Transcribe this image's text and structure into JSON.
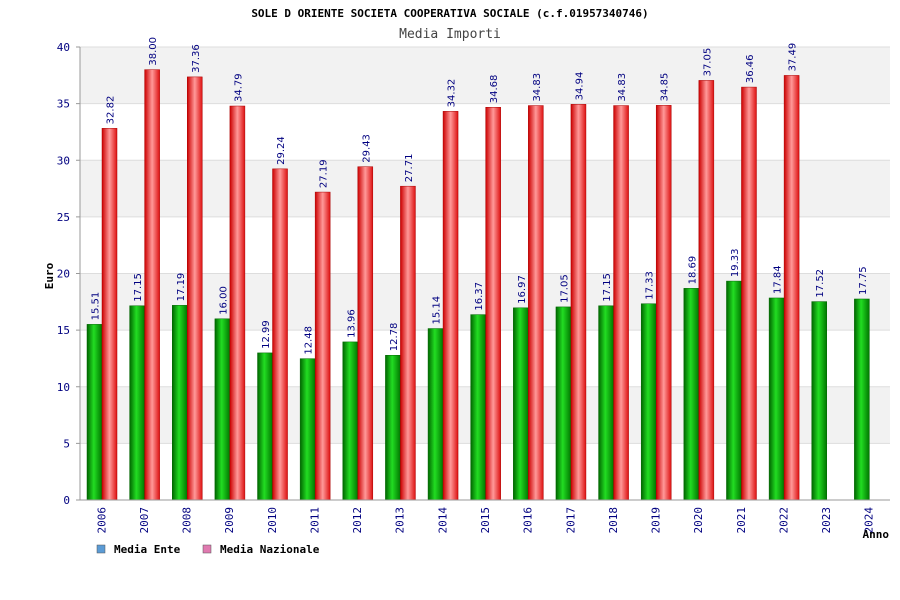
{
  "chart_data": {
    "type": "bar",
    "title": "SOLE D ORIENTE SOCIETA COOPERATIVA SOCIALE (c.f.01957340746)",
    "subtitle": "Media Importi",
    "xlabel": "Anno",
    "ylabel": "Euro",
    "ylim": [
      0,
      40
    ],
    "yticks": [
      0,
      5,
      10,
      15,
      20,
      25,
      30,
      35,
      40
    ],
    "grid": true,
    "legend_position": "bottom-left",
    "categories": [
      "2006",
      "2007",
      "2008",
      "2009",
      "2010",
      "2011",
      "2012",
      "2013",
      "2014",
      "2015",
      "2016",
      "2017",
      "2018",
      "2019",
      "2020",
      "2021",
      "2022",
      "2023",
      "2024"
    ],
    "series": [
      {
        "name": "Media Ente",
        "color": "#00aa00",
        "legend_color": "#5b9bd5",
        "values": [
          15.51,
          17.15,
          17.19,
          16.0,
          12.99,
          12.48,
          13.96,
          12.78,
          15.14,
          16.37,
          16.97,
          17.05,
          17.15,
          17.33,
          18.69,
          19.33,
          17.84,
          17.52,
          17.75
        ],
        "labels": [
          "15.51",
          "17.15",
          "17.19",
          "16.00",
          "12.99",
          "12.48",
          "13.96",
          "12.78",
          "15.14",
          "16.37",
          "16.97",
          "17.05",
          "17.15",
          "17.33",
          "18.69",
          "19.33",
          "17.84",
          "17.52",
          "17.75"
        ]
      },
      {
        "name": "Media Nazionale",
        "color": "#ee2222",
        "legend_color": "#e07ab0",
        "values": [
          32.82,
          38.0,
          37.36,
          34.79,
          29.24,
          27.19,
          29.43,
          27.71,
          34.32,
          34.68,
          34.83,
          34.94,
          34.83,
          34.85,
          37.05,
          36.46,
          37.49,
          null,
          null
        ],
        "labels": [
          "32.82",
          "38.00",
          "37.36",
          "34.79",
          "29.24",
          "27.19",
          "29.43",
          "27.71",
          "34.32",
          "34.68",
          "34.83",
          "34.94",
          "34.83",
          "34.85",
          "37.05",
          "36.46",
          "37.49",
          "",
          ""
        ]
      }
    ]
  }
}
